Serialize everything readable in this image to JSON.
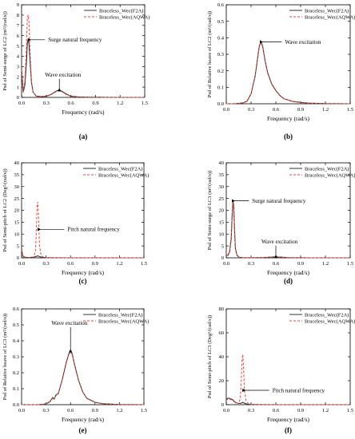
{
  "chart_data": [
    {
      "type": "line",
      "panel_label": "(a)",
      "ylabel": "Psd of Semi-surge of LC2 (m²/(rad/s))",
      "xlabel": "Frequency (rad/s)",
      "xlim": [
        0.0,
        1.5
      ],
      "ylim": [
        0,
        9
      ],
      "xticks": [
        "0.0",
        "0.3",
        "0.6",
        "0.9",
        "1.2",
        "1.5"
      ],
      "xtick_values": [
        0.0,
        0.3,
        0.6,
        0.9,
        1.2,
        1.5
      ],
      "yticks": [
        "0",
        "1",
        "2",
        "3",
        "4",
        "5",
        "6",
        "7",
        "8",
        "9"
      ],
      "ytick_values": [
        0,
        1,
        2,
        3,
        4,
        5,
        6,
        7,
        8,
        9
      ],
      "legend_position": "top-right",
      "series": [
        {
          "name": "Braceless_Wec(F2A)",
          "color": "#333333",
          "dash": false,
          "x": [
            0.0,
            0.02,
            0.04,
            0.06,
            0.07,
            0.08,
            0.09,
            0.1,
            0.12,
            0.14,
            0.18,
            0.25,
            0.3,
            0.35,
            0.4,
            0.43,
            0.46,
            0.5,
            0.55,
            0.6,
            0.7,
            0.8,
            1.0,
            1.2,
            1.5
          ],
          "y": [
            2.8,
            0.5,
            1.2,
            3.5,
            5.3,
            5.6,
            5.2,
            3.9,
            1.5,
            0.5,
            0.12,
            0.08,
            0.12,
            0.25,
            0.5,
            0.65,
            0.7,
            0.55,
            0.3,
            0.12,
            0.04,
            0.02,
            0.01,
            0.0,
            0.0
          ]
        },
        {
          "name": "Braceless_Wec(AQWA)",
          "color": "#e8483f",
          "dash": true,
          "x": [
            0.0,
            0.02,
            0.04,
            0.06,
            0.07,
            0.08,
            0.09,
            0.1,
            0.12,
            0.14,
            0.18,
            0.25,
            0.3,
            0.35,
            0.4,
            0.43,
            0.46,
            0.5,
            0.55,
            0.6,
            0.7,
            0.8,
            1.0,
            1.2,
            1.5
          ],
          "y": [
            2.7,
            0.6,
            1.6,
            5.0,
            7.7,
            8.0,
            7.3,
            5.0,
            1.6,
            0.5,
            0.1,
            0.07,
            0.1,
            0.22,
            0.45,
            0.6,
            0.68,
            0.5,
            0.25,
            0.1,
            0.03,
            0.01,
            0.0,
            0.0,
            0.0
          ]
        }
      ],
      "annotations": [
        {
          "text": "Surge natural frequency",
          "x": 0.09,
          "y": 5.6
        },
        {
          "text": "Wave excitation",
          "x": 0.46,
          "y": 0.7
        }
      ]
    },
    {
      "type": "line",
      "panel_label": "(b)",
      "ylabel": "Psd of Relative heave of LC2 (m²/(rad/s))",
      "xlabel": "Frequency (rad/s)",
      "xlim": [
        0.0,
        1.5
      ],
      "ylim": [
        0.0,
        0.6
      ],
      "xticks": [
        "0.0",
        "0.3",
        "0.6",
        "0.9",
        "1.2",
        "1.5"
      ],
      "xtick_values": [
        0.0,
        0.3,
        0.6,
        0.9,
        1.2,
        1.5
      ],
      "yticks": [
        "0.0",
        "0.1",
        "0.2",
        "0.3",
        "0.4",
        "0.5",
        "0.6"
      ],
      "ytick_values": [
        0.0,
        0.1,
        0.2,
        0.3,
        0.4,
        0.5,
        0.6
      ],
      "legend_position": "top-right",
      "series": [
        {
          "name": "Braceless_Wec(F2A)",
          "color": "#333333",
          "dash": false,
          "x": [
            0.0,
            0.1,
            0.2,
            0.25,
            0.3,
            0.35,
            0.38,
            0.4,
            0.42,
            0.44,
            0.47,
            0.5,
            0.55,
            0.6,
            0.65,
            0.7,
            0.8,
            0.9,
            1.0,
            1.2,
            1.5
          ],
          "y": [
            0.0,
            0.0,
            0.005,
            0.015,
            0.06,
            0.17,
            0.28,
            0.35,
            0.375,
            0.35,
            0.26,
            0.19,
            0.12,
            0.08,
            0.05,
            0.03,
            0.015,
            0.008,
            0.004,
            0.001,
            0.0
          ]
        },
        {
          "name": "Braceless_Wec(AQWA)",
          "color": "#e8483f",
          "dash": true,
          "x": [
            0.0,
            0.1,
            0.2,
            0.25,
            0.3,
            0.35,
            0.38,
            0.4,
            0.42,
            0.44,
            0.47,
            0.5,
            0.55,
            0.6,
            0.65,
            0.7,
            0.8,
            0.9,
            1.0,
            1.2,
            1.5
          ],
          "y": [
            0.0,
            0.0,
            0.005,
            0.014,
            0.058,
            0.165,
            0.275,
            0.345,
            0.37,
            0.345,
            0.255,
            0.185,
            0.118,
            0.078,
            0.048,
            0.03,
            0.014,
            0.007,
            0.003,
            0.001,
            0.0
          ]
        }
      ],
      "annotations": [
        {
          "text": "Wave excitation",
          "x": 0.42,
          "y": 0.375
        }
      ]
    },
    {
      "type": "line",
      "panel_label": "(c)",
      "ylabel": "Psd of Semi-pitch of LC2 (Deg²/(rad/s))",
      "xlabel": "Frequency (rad/s)",
      "xlim": [
        0.0,
        1.5
      ],
      "ylim": [
        0,
        40
      ],
      "xticks": [
        "0.0",
        "0.3",
        "0.6",
        "0.9",
        "1.2",
        "1.5"
      ],
      "xtick_values": [
        0.0,
        0.3,
        0.6,
        0.9,
        1.2,
        1.5
      ],
      "yticks": [
        "0",
        "5",
        "10",
        "15",
        "20",
        "25",
        "30",
        "35",
        "40"
      ],
      "ytick_values": [
        0,
        5,
        10,
        15,
        20,
        25,
        30,
        35,
        40
      ],
      "legend_position": "top-right",
      "series": [
        {
          "name": "Braceless_Wec(F2A)",
          "color": "#333333",
          "dash": false,
          "x": [
            0.0,
            0.01,
            0.02,
            0.04,
            0.06,
            0.1,
            0.15,
            0.18,
            0.2,
            0.22,
            0.25,
            0.3,
            0.4,
            0.6,
            1.0,
            1.5
          ],
          "y": [
            4.0,
            1.5,
            0.6,
            0.3,
            0.2,
            0.15,
            0.3,
            0.6,
            0.8,
            0.5,
            0.2,
            0.05,
            0.02,
            0.0,
            0.0,
            0.0
          ]
        },
        {
          "name": "Braceless_Wec(AQWA)",
          "color": "#e8483f",
          "dash": true,
          "x": [
            0.0,
            0.01,
            0.02,
            0.04,
            0.06,
            0.1,
            0.15,
            0.17,
            0.18,
            0.19,
            0.2,
            0.21,
            0.22,
            0.24,
            0.27,
            0.3,
            0.4,
            1.5
          ],
          "y": [
            3.5,
            1.2,
            0.5,
            0.3,
            0.2,
            0.15,
            0.4,
            3.0,
            10.0,
            22.0,
            23.5,
            15.0,
            5.0,
            1.0,
            0.2,
            0.05,
            0.0,
            0.0
          ]
        }
      ],
      "annotations": [
        {
          "text": "Pitch natural frequency",
          "x": 0.21,
          "y": 12.0
        }
      ]
    },
    {
      "type": "line",
      "panel_label": "(d)",
      "ylabel": "Psd of Semi-surge of LC3 (m²/(rad/s))",
      "xlabel": "Frequency (rad/s)",
      "xlim": [
        0.0,
        1.5
      ],
      "ylim": [
        0,
        40
      ],
      "xticks": [
        "0.0",
        "0.3",
        "0.6",
        "0.9",
        "1.2",
        "1.5"
      ],
      "xtick_values": [
        0.0,
        0.3,
        0.6,
        0.9,
        1.2,
        1.5
      ],
      "yticks": [
        "0",
        "5",
        "10",
        "15",
        "20",
        "25",
        "30",
        "35",
        "40"
      ],
      "ytick_values": [
        0,
        5,
        10,
        15,
        20,
        25,
        30,
        35,
        40
      ],
      "legend_position": "top-right",
      "series": [
        {
          "name": "Braceless_Wec(F2A)",
          "color": "#333333",
          "dash": false,
          "x": [
            0.0,
            0.02,
            0.04,
            0.06,
            0.07,
            0.08,
            0.09,
            0.1,
            0.11,
            0.13,
            0.16,
            0.2,
            0.3,
            0.45,
            0.55,
            0.6,
            0.65,
            0.75,
            1.0,
            1.5
          ],
          "y": [
            1.5,
            1.0,
            2.5,
            8.0,
            17.0,
            23.5,
            22.0,
            12.0,
            4.0,
            1.0,
            0.2,
            0.05,
            0.03,
            0.1,
            0.3,
            0.4,
            0.3,
            0.08,
            0.0,
            0.0
          ]
        },
        {
          "name": "Braceless_Wec(AQWA)",
          "color": "#e8483f",
          "dash": true,
          "x": [
            0.0,
            0.02,
            0.04,
            0.06,
            0.07,
            0.08,
            0.09,
            0.1,
            0.11,
            0.13,
            0.16,
            0.2,
            0.3,
            0.45,
            0.55,
            0.6,
            0.65,
            0.75,
            1.0,
            1.5
          ],
          "y": [
            1.4,
            1.0,
            2.8,
            9.0,
            18.0,
            24.5,
            22.5,
            12.5,
            4.2,
            1.0,
            0.2,
            0.05,
            0.03,
            0.1,
            0.3,
            0.4,
            0.3,
            0.08,
            0.0,
            0.0
          ]
        }
      ],
      "annotations": [
        {
          "text": "Surge natural frequency",
          "x": 0.08,
          "y": 24.0
        },
        {
          "text": "Wave excitation",
          "x": 0.6,
          "y": 0.4
        }
      ]
    },
    {
      "type": "line",
      "panel_label": "(e)",
      "ylabel": "Psd of Relative heave of LC3 (m²/(rad/s))",
      "xlabel": "Frequency (rad/s)",
      "xlim": [
        0.0,
        1.5
      ],
      "ylim": [
        0.0,
        0.6
      ],
      "xticks": [
        "0.0",
        "0.3",
        "0.6",
        "0.9",
        "1.2",
        "1.5"
      ],
      "xtick_values": [
        0.0,
        0.3,
        0.6,
        0.9,
        1.2,
        1.5
      ],
      "yticks": [
        "0.0",
        "0.1",
        "0.2",
        "0.3",
        "0.4",
        "0.5",
        "0.6"
      ],
      "ytick_values": [
        0.0,
        0.1,
        0.2,
        0.3,
        0.4,
        0.5,
        0.6
      ],
      "legend_position": "top-right",
      "series": [
        {
          "name": "Braceless_Wec(F2A)",
          "color": "#333333",
          "dash": false,
          "x": [
            0.0,
            0.2,
            0.3,
            0.35,
            0.38,
            0.4,
            0.42,
            0.45,
            0.5,
            0.55,
            0.58,
            0.6,
            0.62,
            0.65,
            0.7,
            0.75,
            0.8,
            0.9,
            1.0,
            1.2,
            1.5
          ],
          "y": [
            0.0,
            0.0,
            0.005,
            0.02,
            0.045,
            0.035,
            0.06,
            0.07,
            0.16,
            0.27,
            0.32,
            0.335,
            0.32,
            0.25,
            0.15,
            0.08,
            0.04,
            0.015,
            0.006,
            0.001,
            0.0
          ]
        },
        {
          "name": "Braceless_Wec(AQWA)",
          "color": "#e8483f",
          "dash": true,
          "x": [
            0.0,
            0.2,
            0.3,
            0.35,
            0.38,
            0.4,
            0.42,
            0.45,
            0.5,
            0.55,
            0.58,
            0.6,
            0.62,
            0.65,
            0.7,
            0.75,
            0.8,
            0.9,
            1.0,
            1.2,
            1.5
          ],
          "y": [
            0.0,
            0.0,
            0.004,
            0.018,
            0.04,
            0.033,
            0.057,
            0.068,
            0.157,
            0.265,
            0.315,
            0.33,
            0.315,
            0.245,
            0.147,
            0.078,
            0.038,
            0.014,
            0.005,
            0.001,
            0.0
          ]
        }
      ],
      "annotations": [
        {
          "text": "Wave excitation",
          "x": 0.6,
          "y": 0.335
        }
      ]
    },
    {
      "type": "line",
      "panel_label": "(f)",
      "ylabel": "Psd of Semi-pitch of LC3 (Deg²/(rad/s))",
      "xlabel": "Frequency (rad/s)",
      "xlim": [
        0.0,
        1.5
      ],
      "ylim": [
        0,
        80
      ],
      "xticks": [
        "0.0",
        "0.3",
        "0.6",
        "0.9",
        "1.2",
        "1.5"
      ],
      "xtick_values": [
        0.0,
        0.3,
        0.6,
        0.9,
        1.2,
        1.5
      ],
      "yticks": [
        "0",
        "20",
        "40",
        "60",
        "80"
      ],
      "ytick_values": [
        0,
        20,
        40,
        60,
        80
      ],
      "legend_position": "top-right",
      "series": [
        {
          "name": "Braceless_Wec(F2A)",
          "color": "#333333",
          "dash": false,
          "x": [
            0.0,
            0.02,
            0.05,
            0.08,
            0.1,
            0.12,
            0.15,
            0.18,
            0.2,
            0.22,
            0.25,
            0.3,
            0.4,
            0.6,
            1.0,
            1.5
          ],
          "y": [
            4.0,
            5.5,
            5.0,
            4.0,
            2.5,
            1.5,
            1.0,
            1.2,
            2.0,
            1.2,
            0.5,
            0.2,
            0.05,
            0.0,
            0.0,
            0.0
          ]
        },
        {
          "name": "Braceless_Wec(AQWA)",
          "color": "#e8483f",
          "dash": true,
          "x": [
            0.0,
            0.02,
            0.05,
            0.08,
            0.1,
            0.12,
            0.15,
            0.17,
            0.18,
            0.19,
            0.2,
            0.21,
            0.22,
            0.24,
            0.27,
            0.3,
            0.4,
            1.5
          ],
          "y": [
            3.5,
            5.0,
            4.5,
            3.5,
            2.2,
            1.5,
            1.2,
            5.0,
            18.0,
            36.0,
            42.0,
            30.0,
            12.0,
            3.0,
            0.5,
            0.1,
            0.0,
            0.0
          ]
        }
      ],
      "annotations": [
        {
          "text": "Pitch natural frequency",
          "x": 0.21,
          "y": 12.0
        }
      ]
    }
  ]
}
